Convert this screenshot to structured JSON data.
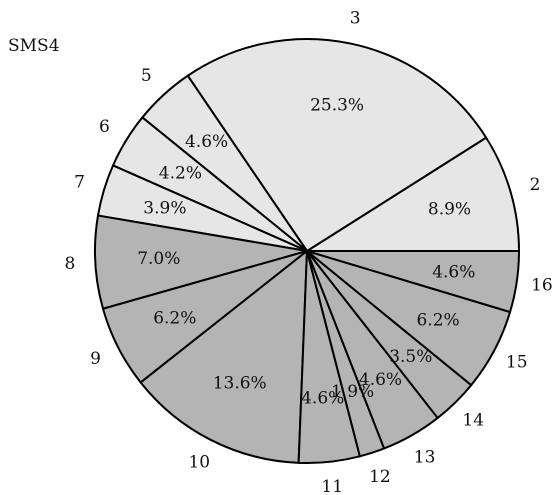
{
  "chart_data": {
    "type": "pie",
    "title": "SMS4",
    "direction": "counterclockwise",
    "start": "right",
    "categories": [
      "2",
      "3",
      "5",
      "6",
      "7",
      "8",
      "9",
      "10",
      "11",
      "12",
      "13",
      "14",
      "15",
      "16"
    ],
    "values": [
      8.9,
      25.3,
      4.6,
      4.2,
      3.9,
      7.0,
      6.2,
      13.6,
      4.6,
      1.9,
      4.6,
      3.5,
      6.2,
      4.6
    ],
    "labels": [
      "8.9%",
      "25.3%",
      "4.6%",
      "4.2%",
      "3.9%",
      "7.0%",
      "6.2%",
      "13.6%",
      "4.6%",
      "1.9%",
      "4.6%",
      "3.5%",
      "6.2%",
      "4.6%"
    ],
    "colors": [
      "#e6e6e6",
      "#e6e6e6",
      "#e6e6e6",
      "#e6e6e6",
      "#e6e6e6",
      "#b4b4b4",
      "#b4b4b4",
      "#b4b4b4",
      "#b4b4b4",
      "#b4b4b4",
      "#b4b4b4",
      "#b4b4b4",
      "#b4b4b4",
      "#b4b4b4"
    ],
    "edge_color": "#000000"
  }
}
